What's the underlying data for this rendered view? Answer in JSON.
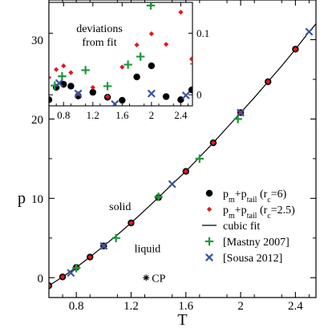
{
  "chart_data": [
    {
      "id": "main",
      "type": "scatter",
      "xlabel": "T",
      "ylabel": "p",
      "xlim": [
        0.6,
        2.55
      ],
      "ylim": [
        -2.5,
        35
      ],
      "xticks": [
        0.8,
        1.2,
        1.6,
        2.0,
        2.4
      ],
      "xtick_labels": [
        "0.8",
        "1.2",
        "1.6",
        "2",
        "2.4"
      ],
      "yticks": [
        0,
        10,
        20,
        30
      ],
      "ytick_labels": [
        "0",
        "10",
        "20",
        "30"
      ],
      "grid": false,
      "legend_position": "lower-right",
      "series": [
        {
          "key": "pm6",
          "marker": "circle",
          "color": "#000000",
          "x": [
            0.6,
            0.7,
            0.8,
            0.9,
            1.0,
            1.2,
            1.4,
            1.6,
            1.8,
            2.0,
            2.2,
            2.4
          ],
          "y": [
            -1.0,
            0.1,
            1.3,
            2.6,
            4.0,
            6.9,
            10.1,
            13.4,
            17.0,
            20.8,
            24.7,
            28.8
          ]
        },
        {
          "key": "pm25",
          "marker": "diamond",
          "color": "#e8141c",
          "x": [
            0.6,
            0.7,
            0.8,
            0.9,
            1.0,
            1.2,
            1.4,
            1.6,
            1.8,
            2.0,
            2.2,
            2.4
          ],
          "y": [
            -1.0,
            0.1,
            1.3,
            2.6,
            4.0,
            6.9,
            10.1,
            13.4,
            17.0,
            20.8,
            24.7,
            28.8
          ]
        },
        {
          "key": "mastny",
          "marker": "plus",
          "color": "#1a9a3a",
          "x": [
            0.8,
            1.09,
            1.4,
            1.7,
            1.98
          ],
          "y": [
            1.2,
            5.0,
            10.2,
            15.0,
            20.0
          ]
        },
        {
          "key": "sousa",
          "marker": "x",
          "color": "#3a55a0",
          "x": [
            0.76,
            1.0,
            1.5,
            2.0,
            2.5
          ],
          "y": [
            0.6,
            4.0,
            11.8,
            20.8,
            31.0
          ]
        }
      ],
      "fit": {
        "key": "fit",
        "color": "#000000",
        "x": [
          0.6,
          0.7,
          0.8,
          0.9,
          1.0,
          1.1,
          1.2,
          1.3,
          1.4,
          1.5,
          1.6,
          1.7,
          1.8,
          1.9,
          2.0,
          2.1,
          2.2,
          2.3,
          2.4,
          2.5,
          2.55
        ],
        "y": [
          -1.0,
          0.1,
          1.3,
          2.6,
          4.0,
          5.4,
          6.9,
          8.5,
          10.1,
          11.8,
          13.4,
          15.2,
          17.0,
          18.9,
          20.8,
          22.7,
          24.7,
          26.7,
          28.8,
          31.0,
          32.0
        ]
      },
      "legend": [
        {
          "key": "pm6",
          "base": "p",
          "sub1": "m",
          "mid": "+p",
          "sub2": "tail",
          "tail_open": " (r",
          "sub3": "c",
          "tail_close": "=6)"
        },
        {
          "key": "pm25",
          "base": "p",
          "sub1": "m",
          "mid": "+p",
          "sub2": "tail",
          "tail_open": " (r",
          "sub3": "c",
          "tail_close": "=2.5)"
        },
        {
          "key": "fit",
          "label": "cubic fit"
        },
        {
          "key": "mastny",
          "label": "[Mastny 2007]"
        },
        {
          "key": "sousa",
          "label": "[Sousa 2012]"
        }
      ],
      "annotations": [
        {
          "id": "solid",
          "text": "solid",
          "x": 1.12,
          "y": 8.5
        },
        {
          "id": "liquid",
          "text": "liquid",
          "x": 1.32,
          "y": 3.2
        },
        {
          "id": "cp",
          "text": "CP",
          "x": 1.31,
          "y": 0.0,
          "marker": "asterisk"
        }
      ]
    },
    {
      "id": "inset",
      "type": "scatter",
      "title": "deviations\nfrom fit",
      "xlim": [
        0.6,
        2.56
      ],
      "ylim": [
        -0.018,
        0.15
      ],
      "xticks": [
        0.8,
        1.2,
        1.6,
        2.0,
        2.4
      ],
      "xtick_labels": [
        "0.8",
        "1.2",
        "1.6",
        "2",
        "2.4"
      ],
      "yticks": [
        0,
        0.1
      ],
      "ytick_labels": [
        "0",
        "0.1"
      ],
      "series": [
        {
          "key": "pm6",
          "marker": "circle",
          "color": "#000000",
          "x": [
            0.6,
            0.7,
            0.8,
            0.9,
            1.0,
            1.2,
            1.4,
            1.6,
            1.8,
            2.0,
            2.2,
            2.4,
            2.55
          ],
          "y": [
            -0.008,
            0.012,
            0.017,
            0.014,
            -0.002,
            0.004,
            -0.004,
            -0.009,
            0.029,
            0.047,
            -0.003,
            -0.008,
            0.008
          ]
        },
        {
          "key": "pm25",
          "marker": "diamond",
          "color": "#e8141c",
          "x": [
            0.6,
            0.7,
            0.8,
            0.9,
            1.0,
            1.2,
            1.4,
            1.6,
            1.8,
            2.0,
            2.2,
            2.4,
            2.55
          ],
          "y": [
            0.028,
            0.041,
            0.047,
            0.036,
            0.002,
            0.012,
            -0.003,
            0.045,
            0.081,
            0.099,
            0.082,
            0.134,
            0.058
          ]
        },
        {
          "key": "mastny",
          "marker": "plus",
          "color": "#1a9a3a",
          "x": [
            0.68,
            0.78,
            1.1,
            1.4,
            1.68,
            1.85,
            1.99
          ],
          "y": [
            0.015,
            0.03,
            0.04,
            0.014,
            0.049,
            0.062,
            0.145
          ]
        },
        {
          "key": "sousa",
          "marker": "x",
          "color": "#3a55a0",
          "x": [
            0.74,
            1.0,
            1.5,
            2.0,
            2.47
          ],
          "y": [
            0.019,
            0.002,
            -0.015,
            0.002,
            -0.001
          ]
        }
      ]
    }
  ]
}
